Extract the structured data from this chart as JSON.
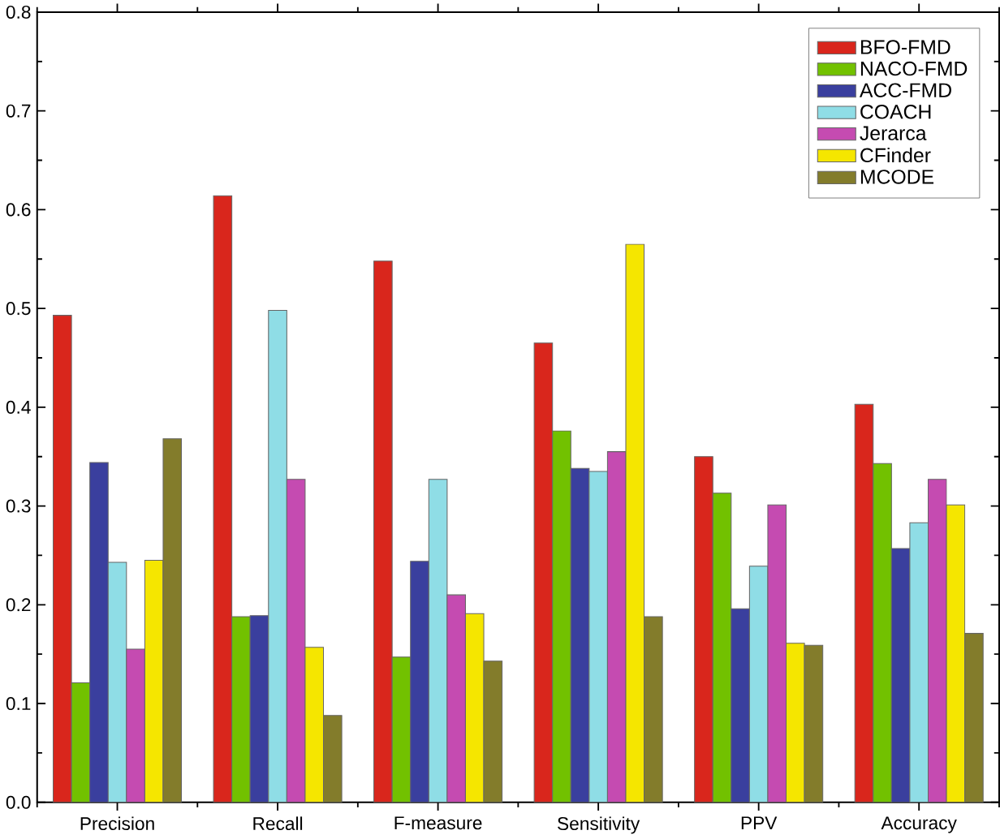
{
  "chart_data": {
    "type": "bar",
    "categories": [
      "Precision",
      "Recall",
      "F-measure",
      "Sensitivity",
      "PPV",
      "Accuracy"
    ],
    "series": [
      {
        "name": "BFO-FMD",
        "color": "#d9261c",
        "values": [
          0.493,
          0.614,
          0.548,
          0.465,
          0.35,
          0.403
        ]
      },
      {
        "name": "NACO-FMD",
        "color": "#72c100",
        "values": [
          0.121,
          0.188,
          0.147,
          0.376,
          0.313,
          0.343
        ]
      },
      {
        "name": "ACC-FMD",
        "color": "#3a3f9e",
        "values": [
          0.344,
          0.189,
          0.244,
          0.338,
          0.196,
          0.257
        ]
      },
      {
        "name": "COACH",
        "color": "#8fdde6",
        "values": [
          0.243,
          0.498,
          0.327,
          0.335,
          0.239,
          0.283
        ]
      },
      {
        "name": "Jerarca",
        "color": "#c54bb1",
        "values": [
          0.155,
          0.327,
          0.21,
          0.355,
          0.301,
          0.327
        ]
      },
      {
        "name": "CFinder",
        "color": "#f5e600",
        "values": [
          0.245,
          0.157,
          0.191,
          0.565,
          0.161,
          0.301
        ]
      },
      {
        "name": "MCODE",
        "color": "#837c2b",
        "values": [
          0.368,
          0.088,
          0.143,
          0.188,
          0.159,
          0.171
        ]
      }
    ],
    "ylim": [
      0,
      0.8
    ],
    "yticks": [
      {
        "value": 0,
        "label": "0.0"
      },
      0.1,
      0.2,
      0.3,
      0.4,
      0.5,
      0.6,
      0.7,
      0.8
    ],
    "legend": "top right",
    "grid": false
  }
}
